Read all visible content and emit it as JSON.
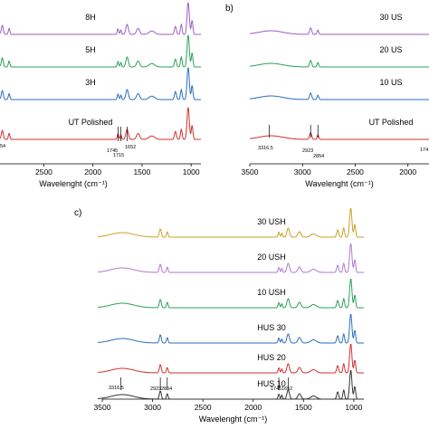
{
  "panel_labels": {
    "b": "b)",
    "c": "c)"
  },
  "chart_data": [
    {
      "type": "line",
      "panel": "a",
      "xlabel": "Wavelenght (cm⁻¹)",
      "xlim": [
        3500,
        900
      ],
      "x_ticks": [
        "2500",
        "2000",
        "1500",
        "1000"
      ],
      "series": [
        {
          "name": "8H",
          "color": "#9b5fc0"
        },
        {
          "name": "5H",
          "color": "#2ca05a"
        },
        {
          "name": "3H",
          "color": "#2a6ebb"
        },
        {
          "name": "UT Polished",
          "color": "#d0312d"
        }
      ],
      "annotations": [
        "1745",
        "1715",
        "1652",
        "54"
      ]
    },
    {
      "type": "line",
      "panel": "b",
      "xlabel": "Wavelenght (cm⁻¹)",
      "xlim": [
        3500,
        1800
      ],
      "x_ticks": [
        "3500",
        "3000",
        "2500",
        "2000"
      ],
      "series": [
        {
          "name": "30 US",
          "color": "#9b5fc0"
        },
        {
          "name": "20 US",
          "color": "#2ca05a"
        },
        {
          "name": "10 US",
          "color": "#2a6ebb"
        },
        {
          "name": "UT Polished",
          "color": "#d0312d"
        }
      ],
      "annotations": [
        "3316,5",
        "2923",
        "2854",
        "174"
      ]
    },
    {
      "type": "line",
      "panel": "c",
      "xlabel": "Wavelenght (cm⁻¹)",
      "xlim": [
        3500,
        900
      ],
      "x_ticks": [
        "3500",
        "3000",
        "2500",
        "2000",
        "1500",
        "1000"
      ],
      "series": [
        {
          "name": "30 USH",
          "color": "#c9a227"
        },
        {
          "name": "20 USH",
          "color": "#b07ad0"
        },
        {
          "name": "10 USH",
          "color": "#2ca05a"
        },
        {
          "name": "HUS 30",
          "color": "#2a6ebb"
        },
        {
          "name": "HUS 20",
          "color": "#d0312d"
        },
        {
          "name": "HUS 10",
          "color": "#333333"
        }
      ],
      "annotations": [
        "3316,5",
        "2923",
        "2854",
        "1745",
        "1652"
      ]
    }
  ]
}
